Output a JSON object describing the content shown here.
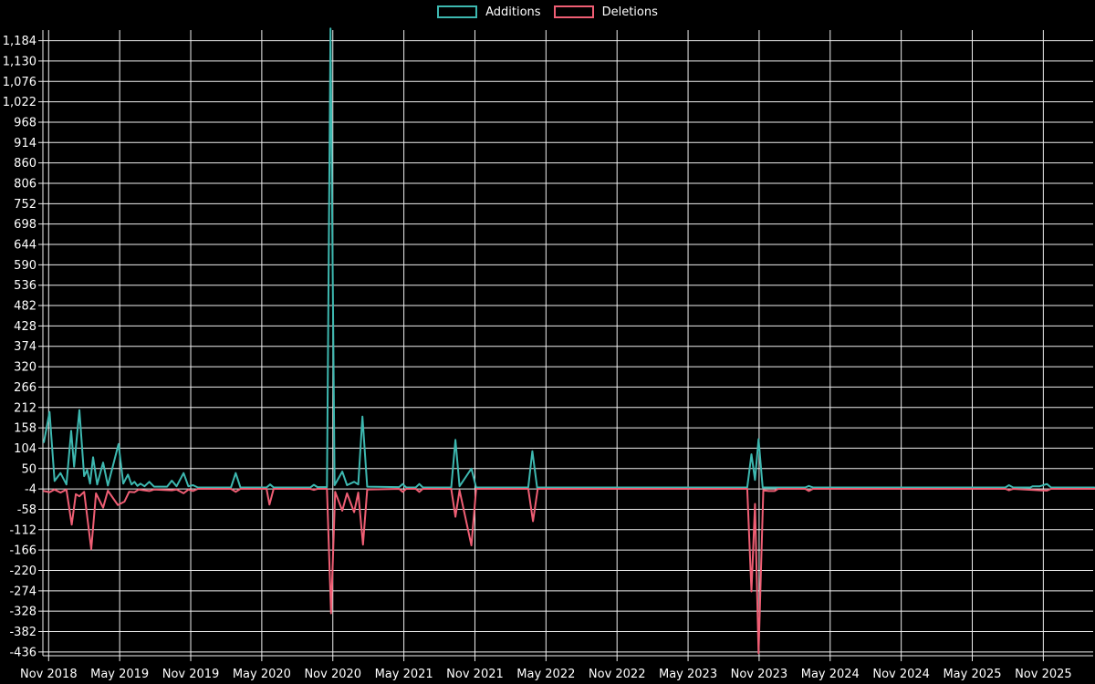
{
  "legend": {
    "items": [
      {
        "label": "Additions",
        "color": "#3db8b0"
      },
      {
        "label": "Deletions",
        "color": "#ef5e74"
      }
    ]
  },
  "colors": {
    "background": "#000000",
    "grid": "#efefef",
    "axis": "#efefef",
    "text": "#ffffff",
    "additions": "#3db8b0",
    "deletions": "#ef5e74"
  },
  "chart_data": {
    "type": "line",
    "title": "",
    "xlabel": "",
    "ylabel": "",
    "grid": true,
    "legend_position": "top-center",
    "x_axis": {
      "start": "Nov 2018",
      "tick_interval_months": 6,
      "tick_labels": [
        "Nov 2018",
        "May 2019",
        "Nov 2019",
        "May 2020",
        "Nov 2020",
        "May 2021",
        "Nov 2021",
        "May 2022",
        "Nov 2022",
        "May 2023",
        "Nov 2023",
        "May 2024",
        "Nov 2024",
        "May 2025",
        "Nov 2025"
      ]
    },
    "y_axis": {
      "tick_step": 54,
      "tick_values": [
        -436,
        -382,
        -328,
        -274,
        -220,
        -166,
        -112,
        -58,
        -4,
        50,
        104,
        158,
        212,
        266,
        320,
        374,
        428,
        482,
        536,
        590,
        644,
        698,
        752,
        806,
        860,
        914,
        968,
        1022,
        1076,
        1130,
        1184
      ],
      "tick_labels": [
        "-436",
        "-382",
        "-328",
        "-274",
        "-220",
        "-166",
        "-112",
        "-58",
        "-4",
        "50",
        "104",
        "158",
        "212",
        "266",
        "320",
        "374",
        "428",
        "482",
        "536",
        "590",
        "644",
        "698",
        "752",
        "806",
        "860",
        "914",
        "968",
        "1,022",
        "1,076",
        "1,130",
        "1,184"
      ],
      "range_min": -446,
      "range_max": 1212
    },
    "time_unit": "months since Nov 2018",
    "series": [
      {
        "name": "Additions",
        "color": "#3db8b0",
        "points": [
          [
            -0.4,
            120
          ],
          [
            0.08,
            200
          ],
          [
            0.5,
            17
          ],
          [
            1.0,
            38
          ],
          [
            1.5,
            8
          ],
          [
            1.9,
            150
          ],
          [
            2.15,
            55
          ],
          [
            2.6,
            205
          ],
          [
            3.0,
            30
          ],
          [
            3.25,
            46
          ],
          [
            3.5,
            10
          ],
          [
            3.75,
            80
          ],
          [
            4.1,
            8
          ],
          [
            4.6,
            66
          ],
          [
            5.0,
            5
          ],
          [
            5.9,
            115
          ],
          [
            6.3,
            10
          ],
          [
            6.7,
            34
          ],
          [
            7.0,
            8
          ],
          [
            7.25,
            15
          ],
          [
            7.5,
            4
          ],
          [
            7.75,
            10
          ],
          [
            8.1,
            3
          ],
          [
            8.5,
            15
          ],
          [
            8.9,
            2
          ],
          [
            10.0,
            2
          ],
          [
            10.4,
            18
          ],
          [
            10.8,
            3
          ],
          [
            11.4,
            38
          ],
          [
            11.8,
            3
          ],
          [
            12.2,
            6
          ],
          [
            12.6,
            0
          ],
          [
            15.4,
            0
          ],
          [
            15.8,
            38
          ],
          [
            16.2,
            0
          ],
          [
            18.4,
            0
          ],
          [
            18.7,
            8
          ],
          [
            19.0,
            0
          ],
          [
            22.1,
            0
          ],
          [
            22.4,
            7
          ],
          [
            22.7,
            1
          ],
          [
            23.5,
            1
          ],
          [
            23.8,
            1216
          ],
          [
            24.15,
            6
          ],
          [
            24.8,
            42
          ],
          [
            25.2,
            6
          ],
          [
            25.8,
            15
          ],
          [
            26.15,
            8
          ],
          [
            26.5,
            188
          ],
          [
            26.9,
            2
          ],
          [
            29.6,
            1
          ],
          [
            29.9,
            9
          ],
          [
            30.2,
            0
          ],
          [
            31.0,
            0
          ],
          [
            31.3,
            9
          ],
          [
            31.6,
            0
          ],
          [
            34.0,
            0
          ],
          [
            34.35,
            126
          ],
          [
            34.7,
            3
          ],
          [
            35.7,
            50
          ],
          [
            36.1,
            0
          ],
          [
            40.5,
            0
          ],
          [
            40.85,
            96
          ],
          [
            41.25,
            0
          ],
          [
            59.0,
            0
          ],
          [
            59.35,
            88
          ],
          [
            59.65,
            20
          ],
          [
            59.95,
            128
          ],
          [
            60.3,
            0
          ],
          [
            63.9,
            0
          ],
          [
            64.2,
            4
          ],
          [
            64.55,
            0
          ],
          [
            80.8,
            0
          ],
          [
            81.1,
            6
          ],
          [
            81.45,
            0
          ],
          [
            82.9,
            0
          ],
          [
            83.1,
            3
          ],
          [
            83.7,
            3
          ],
          [
            84.3,
            9
          ],
          [
            84.65,
            0
          ],
          [
            88.3,
            0
          ]
        ]
      },
      {
        "name": "Deletions",
        "color": "#ef5e74",
        "points": [
          [
            -0.4,
            -6
          ],
          [
            0.08,
            -9
          ],
          [
            0.5,
            -2
          ],
          [
            1.0,
            -10
          ],
          [
            1.5,
            -2
          ],
          [
            1.95,
            -95
          ],
          [
            2.3,
            -14
          ],
          [
            2.6,
            -20
          ],
          [
            3.0,
            -8
          ],
          [
            3.6,
            -160
          ],
          [
            4.0,
            -12
          ],
          [
            4.6,
            -50
          ],
          [
            5.0,
            -5
          ],
          [
            5.85,
            -43
          ],
          [
            6.4,
            -34
          ],
          [
            6.8,
            -8
          ],
          [
            7.25,
            -9
          ],
          [
            7.6,
            -2
          ],
          [
            8.5,
            -6
          ],
          [
            8.9,
            -2
          ],
          [
            10.4,
            -4
          ],
          [
            10.8,
            -2
          ],
          [
            11.4,
            -12
          ],
          [
            11.8,
            -2
          ],
          [
            12.2,
            -6
          ],
          [
            12.6,
            0
          ],
          [
            15.4,
            0
          ],
          [
            15.8,
            -8
          ],
          [
            16.2,
            0
          ],
          [
            18.4,
            0
          ],
          [
            18.65,
            -42
          ],
          [
            19.0,
            0
          ],
          [
            22.1,
            0
          ],
          [
            22.4,
            -3
          ],
          [
            22.7,
            0
          ],
          [
            23.5,
            0
          ],
          [
            23.85,
            -330
          ],
          [
            24.2,
            -8
          ],
          [
            24.8,
            -58
          ],
          [
            25.2,
            -12
          ],
          [
            25.8,
            -62
          ],
          [
            26.15,
            -10
          ],
          [
            26.55,
            -148
          ],
          [
            26.9,
            -2
          ],
          [
            29.6,
            0
          ],
          [
            29.9,
            -8
          ],
          [
            30.2,
            0
          ],
          [
            31.0,
            0
          ],
          [
            31.3,
            -8
          ],
          [
            31.6,
            0
          ],
          [
            34.0,
            0
          ],
          [
            34.35,
            -74
          ],
          [
            34.7,
            -4
          ],
          [
            35.7,
            -150
          ],
          [
            36.1,
            0
          ],
          [
            40.5,
            0
          ],
          [
            40.9,
            -86
          ],
          [
            41.3,
            0
          ],
          [
            59.0,
            0
          ],
          [
            59.35,
            -272
          ],
          [
            59.65,
            -40
          ],
          [
            59.95,
            -436
          ],
          [
            60.35,
            -4
          ],
          [
            60.8,
            -6
          ],
          [
            61.3,
            -6
          ],
          [
            61.6,
            0
          ],
          [
            63.9,
            0
          ],
          [
            64.2,
            -6
          ],
          [
            64.55,
            0
          ],
          [
            80.8,
            0
          ],
          [
            81.1,
            -4
          ],
          [
            81.45,
            0
          ],
          [
            84.3,
            -5
          ],
          [
            84.65,
            0
          ],
          [
            88.3,
            0
          ]
        ]
      }
    ]
  }
}
